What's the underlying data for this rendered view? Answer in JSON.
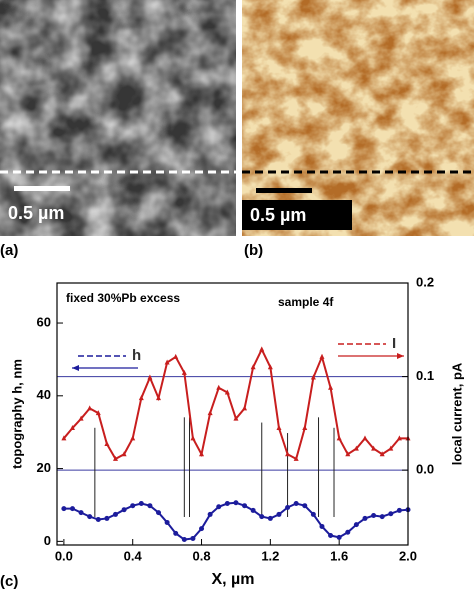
{
  "panels": [
    {
      "label": "(a)",
      "scale_bar": "0.5 µm"
    },
    {
      "label": "(b)",
      "scale_bar": "0.5 µm"
    }
  ],
  "chart_data": {
    "type": "line",
    "panel_label": "(c)",
    "annotations": [
      "fixed 30%Pb excess",
      "sample 4f"
    ],
    "x_label": "X, µm",
    "y_label": "topography h, nm",
    "y2_label": "local current, pA",
    "xlim": [
      -0.04,
      2.0
    ],
    "xticks": [
      {
        "value": 0,
        "label": "0.0"
      },
      0.4,
      0.8,
      1.2,
      1.6,
      {
        "value": 2,
        "label": "2.0"
      }
    ],
    "ylim": [
      -1,
      71
    ],
    "yticks": [
      0,
      20,
      40,
      60
    ],
    "y2lim": [
      -0.08,
      0.2
    ],
    "y2ticks": [
      {
        "value": 0,
        "label": "0.0"
      },
      0.1,
      0.2
    ],
    "y2grid": true,
    "grid_color": "#3a3aa0",
    "x": [
      0,
      0.05,
      0.1,
      0.15,
      0.2,
      0.25,
      0.3,
      0.35,
      0.4,
      0.45,
      0.5,
      0.55,
      0.6,
      0.65,
      0.7,
      0.75,
      0.8,
      0.85,
      0.9,
      0.95,
      1.0,
      1.05,
      1.1,
      1.15,
      1.2,
      1.25,
      1.3,
      1.35,
      1.4,
      1.45,
      1.5,
      1.55,
      1.6,
      1.65,
      1.7,
      1.75,
      1.8,
      1.85,
      1.9,
      1.95,
      2.0
    ],
    "series": [
      {
        "name": "h",
        "color": "#1c1c9c",
        "axis": "y",
        "values": [
          9.0,
          9.0,
          7.9,
          6.8,
          6.0,
          6.3,
          7.4,
          8.7,
          9.8,
          10.4,
          9.8,
          7.9,
          5.2,
          2.2,
          0.5,
          0.8,
          3.5,
          7.4,
          9.5,
          10.4,
          10.6,
          9.8,
          8.5,
          6.8,
          6.3,
          7.4,
          9.3,
          10.4,
          9.8,
          7.4,
          4.1,
          1.6,
          1.1,
          2.5,
          4.6,
          6.3,
          7.1,
          6.8,
          7.6,
          8.5,
          8.7
        ]
      },
      {
        "name": "I",
        "color": "#c81e1e",
        "axis": "y2",
        "values": [
          0.034,
          0.045,
          0.055,
          0.066,
          0.061,
          0.028,
          0.012,
          0.017,
          0.034,
          0.077,
          0.099,
          0.077,
          0.115,
          0.121,
          0.104,
          0.034,
          0.017,
          0.061,
          0.088,
          0.083,
          0.055,
          0.066,
          0.11,
          0.129,
          0.11,
          0.045,
          0.017,
          0.012,
          0.045,
          0.099,
          0.121,
          0.088,
          0.034,
          0.017,
          0.023,
          0.034,
          0.023,
          0.017,
          0.023,
          0.034,
          0.034
        ]
      }
    ]
  }
}
